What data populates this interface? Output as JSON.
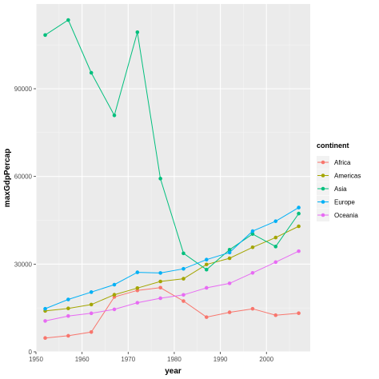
{
  "watermark": "知乎 @ottis",
  "chart_data": {
    "type": "line",
    "xlabel": "year",
    "ylabel": "maxGdpPercap",
    "xlim": [
      1950,
      2009.5
    ],
    "ylim": [
      0,
      119000
    ],
    "x_ticks": [
      1950,
      1960,
      1970,
      1980,
      1990,
      2000
    ],
    "y_ticks": [
      0,
      30000,
      60000,
      90000
    ],
    "grid": true,
    "legend": {
      "title": "continent",
      "position": "right"
    },
    "x": [
      1952,
      1957,
      1962,
      1967,
      1972,
      1977,
      1982,
      1987,
      1992,
      1997,
      2002,
      2007
    ],
    "series": [
      {
        "name": "Africa",
        "color": "#F8766D",
        "values": [
          4725,
          5487,
          6757,
          18773,
          21011,
          21951,
          17364,
          11864,
          13522,
          14723,
          12522,
          13206
        ]
      },
      {
        "name": "Americas",
        "color": "#A3A500",
        "values": [
          13990,
          14847,
          16173,
          19530,
          21806,
          24073,
          25010,
          29884,
          32004,
          35767,
          39097,
          42952
        ]
      },
      {
        "name": "Asia",
        "color": "#00BF7D",
        "values": [
          108382,
          113523,
          95458,
          80895,
          109348,
          59265,
          33693,
          28118,
          34933,
          40301,
          36023,
          47307
        ]
      },
      {
        "name": "Europe",
        "color": "#00B0F6",
        "values": [
          14734,
          17909,
          20431,
          22966,
          27195,
          26982,
          28398,
          31541,
          33966,
          41283,
          44684,
          49357
        ]
      },
      {
        "name": "Oceania",
        "color": "#E76BF3",
        "values": [
          10557,
          12247,
          13176,
          14526,
          16789,
          18334,
          19477,
          21889,
          23425,
          26998,
          30688,
          34435
        ]
      }
    ]
  }
}
